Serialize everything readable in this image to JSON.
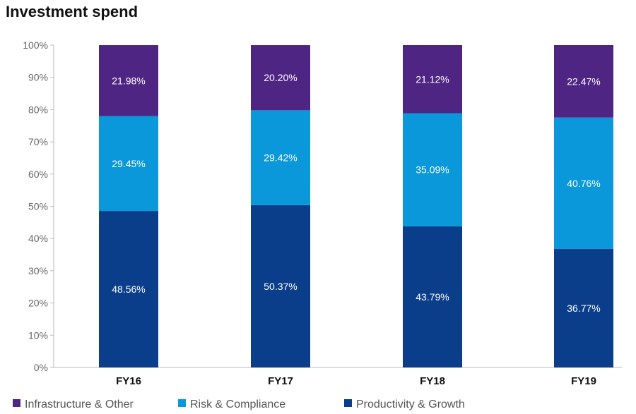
{
  "chart_data": {
    "type": "bar",
    "stacked": true,
    "title": "Investment spend",
    "categories": [
      "FY16",
      "FY17",
      "FY18",
      "FY19"
    ],
    "series": [
      {
        "name": "Productivity & Growth",
        "color": "#0b3e8a",
        "values": [
          48.56,
          50.37,
          43.79,
          36.77
        ],
        "labels": [
          "48.56%",
          "50.37%",
          "43.79%",
          "36.77%"
        ]
      },
      {
        "name": "Risk & Compliance",
        "color": "#0a98db",
        "values": [
          29.45,
          29.42,
          35.09,
          40.76
        ],
        "labels": [
          "29.45%",
          "29.42%",
          "35.09%",
          "40.76%"
        ]
      },
      {
        "name": "Infrastructure & Other",
        "color": "#4f2584",
        "values": [
          21.98,
          20.2,
          21.12,
          22.47
        ],
        "labels": [
          "21.98%",
          "20.20%",
          "21.12%",
          "22.47%"
        ]
      }
    ],
    "yticks": [
      "0%",
      "10%",
      "20%",
      "30%",
      "40%",
      "50%",
      "60%",
      "70%",
      "80%",
      "90%",
      "100%"
    ],
    "ylim": [
      0,
      100
    ],
    "legend": [
      {
        "name": "Infrastructure & Other",
        "color": "#4f2584"
      },
      {
        "name": "Risk & Compliance",
        "color": "#0a98db"
      },
      {
        "name": "Productivity & Growth",
        "color": "#0b3e8a"
      }
    ],
    "legend_position": "bottom",
    "grid": false
  }
}
